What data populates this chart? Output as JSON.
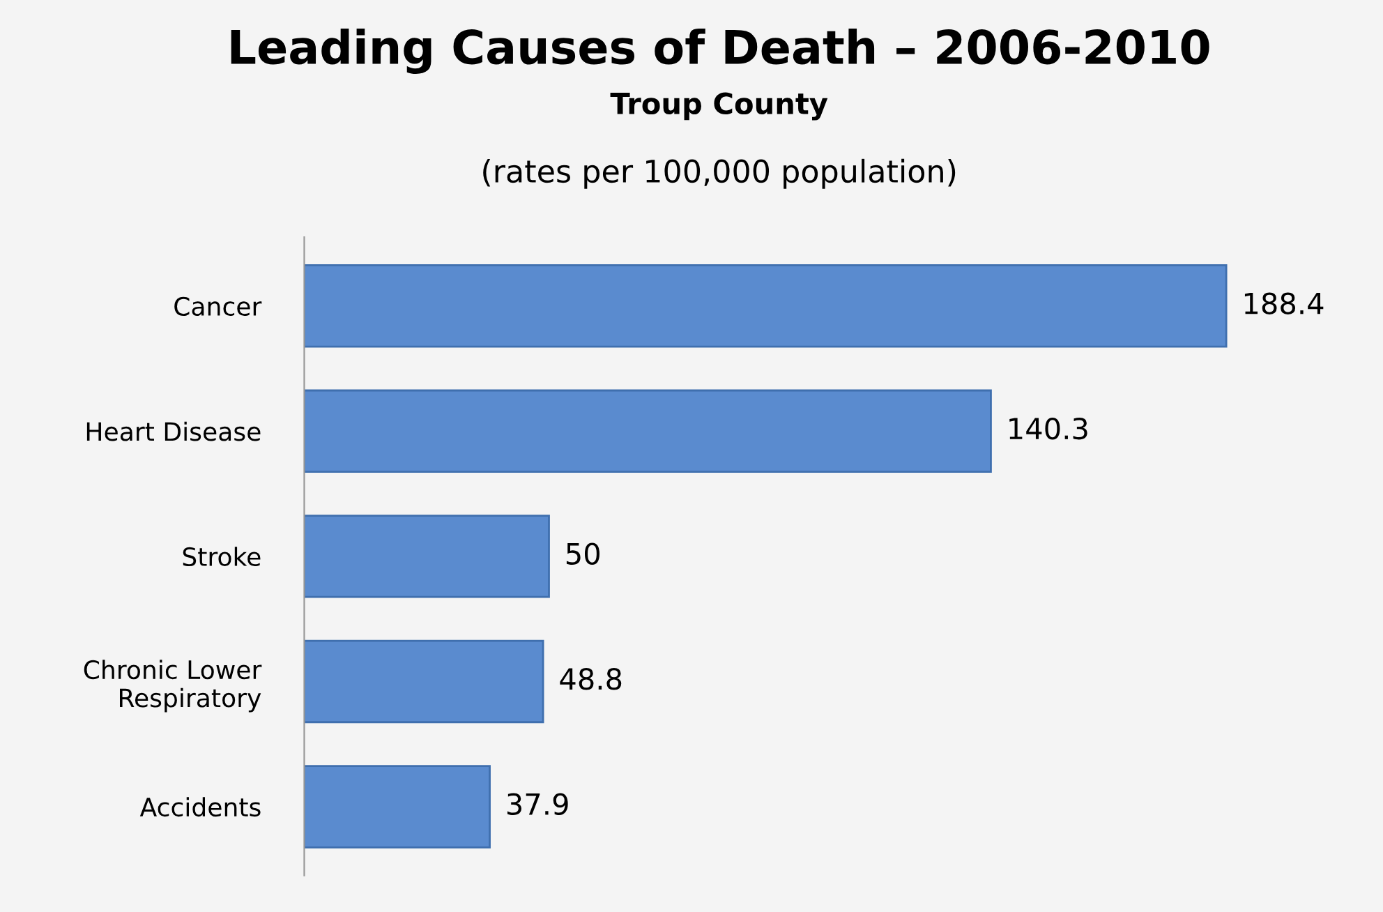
{
  "chart_data": {
    "type": "bar",
    "orientation": "horizontal",
    "title": "Leading Causes of Death – 2006-2010",
    "subtitle": "Troup County",
    "annotations": [
      "(rates per 100,000 population)"
    ],
    "categories": [
      "Cancer",
      "Heart Disease",
      "Stroke",
      "Chronic Lower\nRespiratory",
      "Accidents"
    ],
    "values": [
      188.4,
      140.3,
      50,
      48.8,
      37.9
    ],
    "color": "#5a8bcf",
    "data_labels": true,
    "tick_labels": "y",
    "grid": false,
    "legend": false
  }
}
